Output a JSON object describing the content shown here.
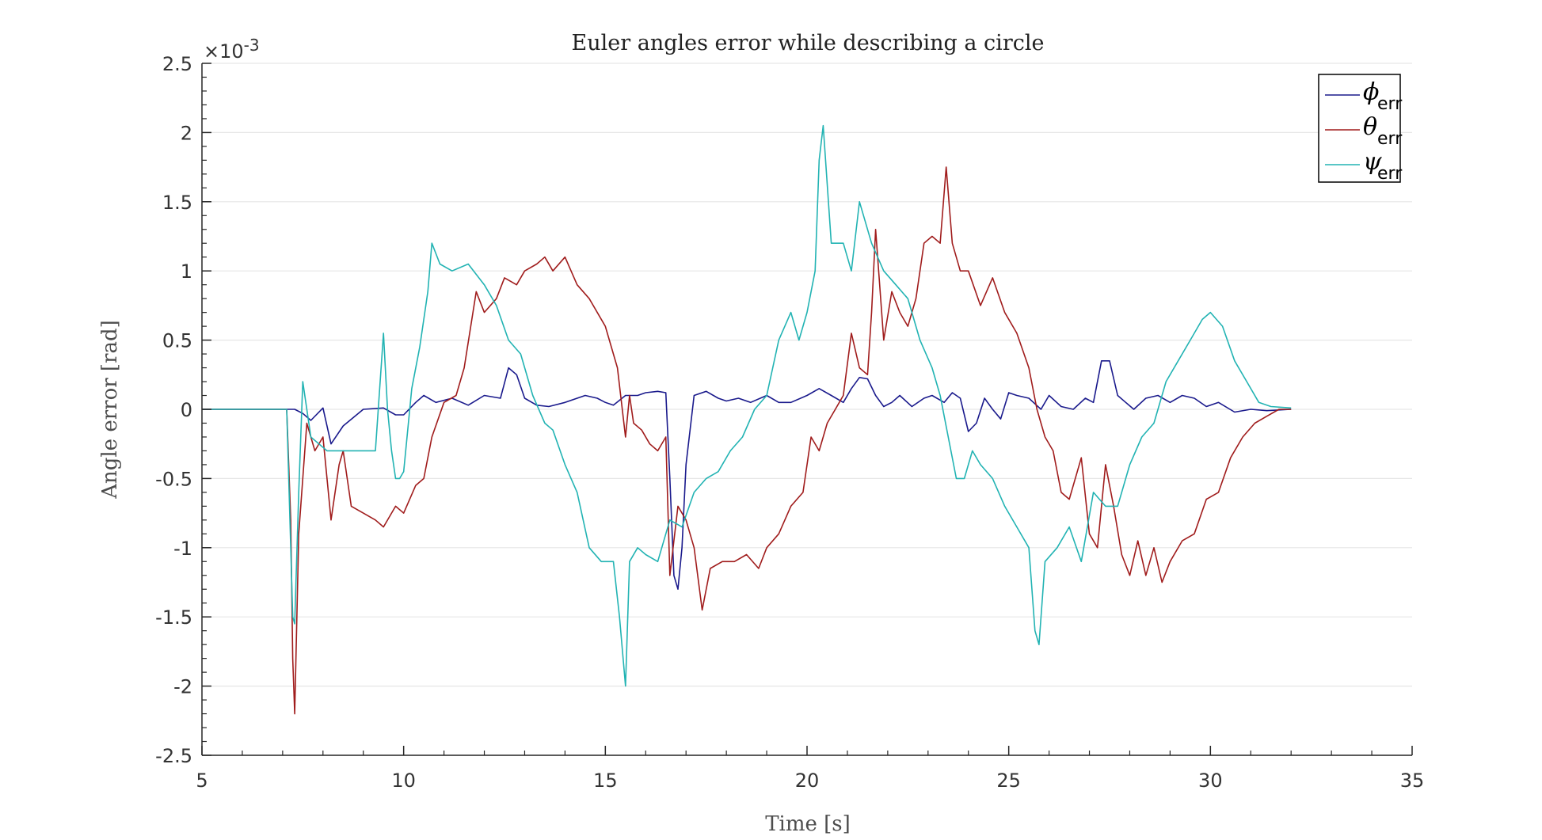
{
  "chart_data": {
    "type": "line",
    "title": "Euler angles error while describing a circle",
    "xlabel": "Time [s]",
    "ylabel": "Angle error [rad]",
    "exponent_label": "×10",
    "exponent_power": "-3",
    "xlim": [
      5,
      35
    ],
    "ylim": [
      -2.5,
      2.5
    ],
    "x_ticks": [
      5,
      10,
      15,
      20,
      25,
      30,
      35
    ],
    "x_tick_labels": [
      "5",
      "10",
      "15",
      "20",
      "25",
      "30",
      "35"
    ],
    "y_ticks": [
      2.5,
      2,
      1.5,
      1,
      0.5,
      0,
      -0.5,
      -1,
      -1.5,
      -2,
      -2.5
    ],
    "y_tick_labels": [
      "2.5",
      "2",
      "1.5",
      "1",
      "0.5",
      "0",
      "-0.5",
      "-1",
      "-1.5",
      "-2",
      "-2.5"
    ],
    "grid": true,
    "legend_position": "top-right",
    "y_units_scale": "1e-3",
    "series": [
      {
        "name": "phi_err",
        "legend_symbol": "ϕ",
        "legend_sub": "err",
        "color": "#1a1a8c",
        "x": [
          5,
          7.1,
          7.3,
          7.5,
          7.7,
          8.0,
          8.2,
          8.5,
          9.0,
          9.5,
          9.8,
          10.0,
          10.3,
          10.5,
          10.8,
          11.2,
          11.6,
          12.0,
          12.4,
          12.6,
          12.8,
          13.0,
          13.3,
          13.6,
          14.0,
          14.5,
          14.8,
          15.0,
          15.2,
          15.5,
          15.8,
          16.0,
          16.3,
          16.5,
          16.6,
          16.7,
          16.8,
          16.9,
          17.0,
          17.2,
          17.5,
          17.8,
          18.0,
          18.3,
          18.6,
          19.0,
          19.3,
          19.6,
          20.0,
          20.3,
          20.6,
          20.9,
          21.1,
          21.3,
          21.5,
          21.7,
          21.9,
          22.1,
          22.3,
          22.6,
          22.9,
          23.1,
          23.4,
          23.6,
          23.8,
          24.0,
          24.2,
          24.4,
          24.6,
          24.8,
          25.0,
          25.2,
          25.5,
          25.8,
          26.0,
          26.3,
          26.6,
          26.9,
          27.1,
          27.3,
          27.5,
          27.7,
          27.9,
          28.1,
          28.4,
          28.7,
          29.0,
          29.3,
          29.6,
          29.9,
          30.2,
          30.6,
          31.0,
          31.4,
          32.0
        ],
        "y": [
          0,
          0,
          0,
          -0.03,
          -0.08,
          0.01,
          -0.25,
          -0.12,
          0.0,
          0.01,
          -0.04,
          -0.04,
          0.05,
          0.1,
          0.05,
          0.08,
          0.03,
          0.1,
          0.08,
          0.3,
          0.25,
          0.08,
          0.03,
          0.02,
          0.05,
          0.1,
          0.08,
          0.05,
          0.03,
          0.1,
          0.1,
          0.12,
          0.13,
          0.12,
          -0.5,
          -1.2,
          -1.3,
          -1.0,
          -0.4,
          0.1,
          0.13,
          0.08,
          0.06,
          0.08,
          0.05,
          0.1,
          0.05,
          0.05,
          0.1,
          0.15,
          0.1,
          0.05,
          0.15,
          0.23,
          0.22,
          0.1,
          0.02,
          0.05,
          0.1,
          0.02,
          0.08,
          0.1,
          0.05,
          0.12,
          0.08,
          -0.16,
          -0.1,
          0.08,
          0.0,
          -0.07,
          0.12,
          0.1,
          0.08,
          0.0,
          0.1,
          0.02,
          0.0,
          0.08,
          0.05,
          0.35,
          0.35,
          0.1,
          0.05,
          0.0,
          0.08,
          0.1,
          0.05,
          0.1,
          0.08,
          0.02,
          0.05,
          -0.02,
          0.0,
          -0.01,
          0.0
        ]
      },
      {
        "name": "theta_err",
        "legend_symbol": "θ",
        "legend_sub": "err",
        "color": "#a01c1c",
        "x": [
          5,
          7.1,
          7.2,
          7.25,
          7.3,
          7.4,
          7.6,
          7.8,
          8.0,
          8.2,
          8.4,
          8.5,
          8.7,
          9.0,
          9.3,
          9.5,
          9.8,
          10.0,
          10.3,
          10.5,
          10.7,
          11.0,
          11.3,
          11.5,
          11.8,
          12.0,
          12.3,
          12.5,
          12.8,
          13.0,
          13.3,
          13.5,
          13.7,
          14.0,
          14.3,
          14.6,
          15.0,
          15.3,
          15.5,
          15.6,
          15.7,
          15.9,
          16.1,
          16.3,
          16.5,
          16.6,
          16.8,
          17.0,
          17.2,
          17.4,
          17.6,
          17.9,
          18.2,
          18.5,
          18.8,
          19.0,
          19.3,
          19.6,
          19.9,
          20.1,
          20.3,
          20.5,
          20.7,
          20.9,
          21.1,
          21.3,
          21.5,
          21.6,
          21.7,
          21.9,
          22.1,
          22.3,
          22.5,
          22.7,
          22.9,
          23.1,
          23.3,
          23.45,
          23.6,
          23.8,
          24.0,
          24.3,
          24.6,
          24.9,
          25.2,
          25.5,
          25.7,
          25.9,
          26.1,
          26.3,
          26.5,
          26.8,
          27.0,
          27.2,
          27.4,
          27.6,
          27.8,
          28.0,
          28.2,
          28.4,
          28.6,
          28.8,
          29.0,
          29.3,
          29.6,
          29.9,
          30.2,
          30.5,
          30.8,
          31.1,
          31.4,
          31.7,
          32.0
        ],
        "y": [
          0,
          0,
          -0.8,
          -1.8,
          -2.2,
          -0.9,
          -0.1,
          -0.3,
          -0.2,
          -0.8,
          -0.4,
          -0.3,
          -0.7,
          -0.75,
          -0.8,
          -0.85,
          -0.7,
          -0.75,
          -0.55,
          -0.5,
          -0.2,
          0.05,
          0.1,
          0.3,
          0.85,
          0.7,
          0.8,
          0.95,
          0.9,
          1.0,
          1.05,
          1.1,
          1.0,
          1.1,
          0.9,
          0.8,
          0.6,
          0.3,
          -0.2,
          0.1,
          -0.1,
          -0.15,
          -0.25,
          -0.3,
          -0.2,
          -1.2,
          -0.7,
          -0.8,
          -1.0,
          -1.45,
          -1.15,
          -1.1,
          -1.1,
          -1.05,
          -1.15,
          -1.0,
          -0.9,
          -0.7,
          -0.6,
          -0.2,
          -0.3,
          -0.1,
          0.0,
          0.1,
          0.55,
          0.3,
          0.25,
          0.7,
          1.3,
          0.5,
          0.85,
          0.7,
          0.6,
          0.8,
          1.2,
          1.25,
          1.2,
          1.75,
          1.2,
          1.0,
          1.0,
          0.75,
          0.95,
          0.7,
          0.55,
          0.3,
          0.0,
          -0.2,
          -0.3,
          -0.6,
          -0.65,
          -0.35,
          -0.9,
          -1.0,
          -0.4,
          -0.7,
          -1.05,
          -1.2,
          -0.95,
          -1.2,
          -1.0,
          -1.25,
          -1.1,
          -0.95,
          -0.9,
          -0.65,
          -0.6,
          -0.35,
          -0.2,
          -0.1,
          -0.05,
          0,
          0
        ]
      },
      {
        "name": "psi_err",
        "legend_symbol": "ψ",
        "legend_sub": "err",
        "color": "#22b3b3",
        "x": [
          5,
          7.1,
          7.2,
          7.25,
          7.3,
          7.4,
          7.5,
          7.7,
          7.9,
          8.1,
          8.5,
          9.0,
          9.3,
          9.5,
          9.6,
          9.7,
          9.8,
          9.9,
          10.0,
          10.2,
          10.4,
          10.6,
          10.7,
          10.9,
          11.2,
          11.6,
          12.0,
          12.3,
          12.6,
          12.9,
          13.2,
          13.5,
          13.7,
          14.0,
          14.3,
          14.6,
          14.9,
          15.2,
          15.35,
          15.5,
          15.6,
          15.8,
          16.0,
          16.3,
          16.6,
          16.9,
          17.2,
          17.5,
          17.8,
          18.1,
          18.4,
          18.7,
          19.0,
          19.3,
          19.6,
          19.8,
          20.0,
          20.2,
          20.3,
          20.4,
          20.6,
          20.9,
          21.1,
          21.3,
          21.6,
          21.9,
          22.2,
          22.5,
          22.8,
          23.1,
          23.3,
          23.5,
          23.7,
          23.9,
          24.1,
          24.3,
          24.6,
          24.9,
          25.2,
          25.5,
          25.65,
          25.75,
          25.9,
          26.2,
          26.5,
          26.8,
          27.1,
          27.4,
          27.7,
          28.0,
          28.3,
          28.6,
          28.9,
          29.2,
          29.5,
          29.8,
          30.0,
          30.3,
          30.6,
          30.9,
          31.2,
          31.5,
          32.0
        ],
        "y": [
          0,
          0,
          -1.0,
          -1.5,
          -1.55,
          -0.6,
          0.2,
          -0.2,
          -0.25,
          -0.3,
          -0.3,
          -0.3,
          -0.3,
          0.55,
          0.0,
          -0.3,
          -0.5,
          -0.5,
          -0.45,
          0.15,
          0.45,
          0.85,
          1.2,
          1.05,
          1.0,
          1.05,
          0.9,
          0.75,
          0.5,
          0.4,
          0.1,
          -0.1,
          -0.15,
          -0.4,
          -0.6,
          -1.0,
          -1.1,
          -1.1,
          -1.5,
          -2.0,
          -1.1,
          -1.0,
          -1.05,
          -1.1,
          -0.8,
          -0.85,
          -0.6,
          -0.5,
          -0.45,
          -0.3,
          -0.2,
          0.0,
          0.1,
          0.5,
          0.7,
          0.5,
          0.7,
          1.0,
          1.8,
          2.05,
          1.2,
          1.2,
          1.0,
          1.5,
          1.2,
          1.0,
          0.9,
          0.8,
          0.5,
          0.3,
          0.1,
          -0.2,
          -0.5,
          -0.5,
          -0.3,
          -0.4,
          -0.5,
          -0.7,
          -0.85,
          -1.0,
          -1.6,
          -1.7,
          -1.1,
          -1.0,
          -0.85,
          -1.1,
          -0.6,
          -0.7,
          -0.7,
          -0.4,
          -0.2,
          -0.1,
          0.2,
          0.35,
          0.5,
          0.65,
          0.7,
          0.6,
          0.35,
          0.2,
          0.05,
          0.02,
          0.01
        ]
      }
    ]
  }
}
